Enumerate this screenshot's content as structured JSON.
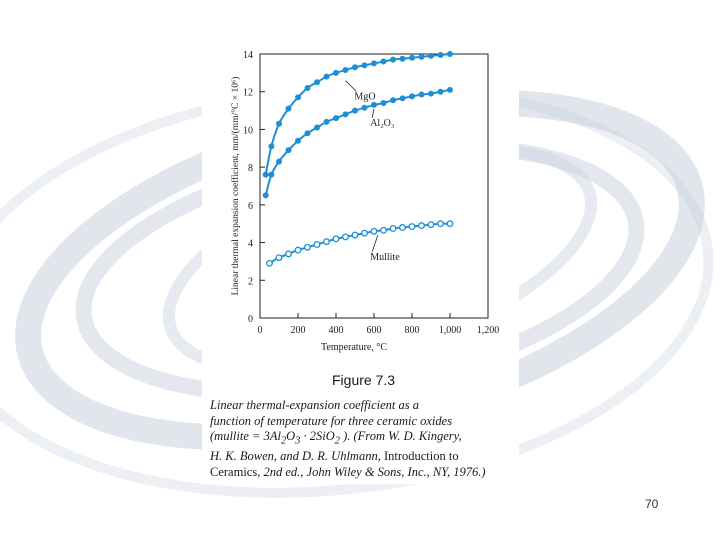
{
  "slide": {
    "page_number": "70"
  },
  "colors": {
    "series": "#1e8fd4",
    "axis": "#222222"
  },
  "caption": {
    "figure_label": "Figure 7.3",
    "line1": "Linear thermal-expansion coefficient as a",
    "line2": "function of temperature for three ceramic oxides",
    "line3a": "(mullite = 3Al",
    "line3b": "O",
    "line3c": " · 2SiO",
    "line3d": " ). (From W. D. Kingery,",
    "line4": "H. K. Bowen, and D. R. Uhlmann,",
    "line4b": " Introduction to",
    "line5a": "Ceramics",
    "line5b": ", 2nd ed., John Wiley & Sons, Inc., NY, 1976.)",
    "sub2": "2",
    "sub3": "3"
  },
  "chart_data": {
    "type": "line",
    "xlabel": "Temperature, °C",
    "ylabel": "Linear thermal expansion coefficient, mm/(mm/°C × 10⁶)",
    "xlim": [
      0,
      1200
    ],
    "ylim": [
      0,
      14
    ],
    "xticks": [
      0,
      200,
      400,
      600,
      800,
      1000,
      1200
    ],
    "xtick_labels": [
      "0",
      "200",
      "400",
      "600",
      "800",
      "1,000",
      "1,200"
    ],
    "yticks": [
      0,
      2,
      4,
      6,
      8,
      10,
      12,
      14
    ],
    "ytick_labels": [
      "0",
      "2",
      "4",
      "6",
      "8",
      "10",
      "12",
      "14"
    ],
    "series": [
      {
        "name": "MgO",
        "marker": "filled",
        "x": [
          30,
          60,
          100,
          150,
          200,
          250,
          300,
          350,
          400,
          450,
          500,
          550,
          600,
          650,
          700,
          750,
          800,
          850,
          900,
          950,
          1000
        ],
        "y": [
          7.6,
          9.1,
          10.3,
          11.1,
          11.7,
          12.2,
          12.5,
          12.8,
          13.0,
          13.15,
          13.3,
          13.4,
          13.5,
          13.6,
          13.7,
          13.75,
          13.8,
          13.85,
          13.9,
          13.95,
          14.0
        ]
      },
      {
        "name": "Al₂O₃",
        "marker": "filled",
        "x": [
          30,
          60,
          100,
          150,
          200,
          250,
          300,
          350,
          400,
          450,
          500,
          550,
          600,
          650,
          700,
          750,
          800,
          850,
          900,
          950,
          1000
        ],
        "y": [
          6.5,
          7.6,
          8.3,
          8.9,
          9.4,
          9.8,
          10.1,
          10.4,
          10.6,
          10.8,
          11.0,
          11.15,
          11.3,
          11.4,
          11.55,
          11.65,
          11.75,
          11.85,
          11.9,
          12.0,
          12.1
        ]
      },
      {
        "name": "Mullite",
        "marker": "open",
        "x": [
          50,
          100,
          150,
          200,
          250,
          300,
          350,
          400,
          450,
          500,
          550,
          600,
          650,
          700,
          750,
          800,
          850,
          900,
          950,
          1000
        ],
        "y": [
          2.9,
          3.2,
          3.4,
          3.6,
          3.75,
          3.9,
          4.05,
          4.2,
          4.3,
          4.4,
          4.5,
          4.6,
          4.65,
          4.75,
          4.8,
          4.85,
          4.9,
          4.95,
          5.0,
          5.0
        ]
      }
    ],
    "annotations": [
      {
        "text": "MgO",
        "series": "MgO"
      },
      {
        "text": "Al₂O₃",
        "series": "Al₂O₃"
      },
      {
        "text": "Mullite",
        "series": "Mullite"
      }
    ]
  }
}
